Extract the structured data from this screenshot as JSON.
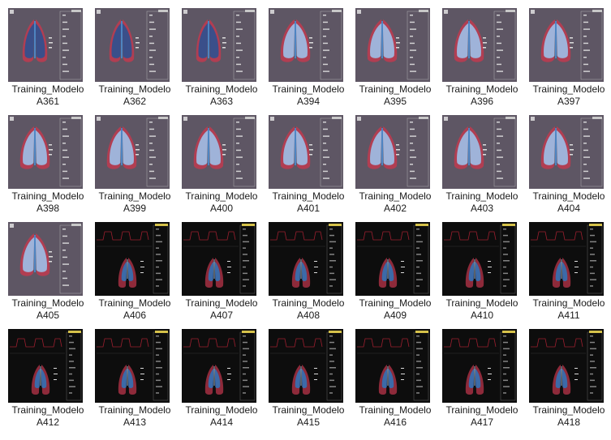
{
  "colors": {
    "background": "#ffffff",
    "label_text": "#1a1a1a",
    "light_bg": "#5a5260",
    "dark_bg": "#0d0d0d",
    "lung_red": "#c0394f",
    "lung_blue": "#4a90d9",
    "waveform_red": "#9b1f2e",
    "readout_yellow": "#d6c24a"
  },
  "files": [
    {
      "line1": "Training_Modelo",
      "line2": "A361",
      "style": "light-a",
      "icon": "lung-light-thumbnail-icon"
    },
    {
      "line1": "Training_Modelo",
      "line2": "A362",
      "style": "light-a",
      "icon": "lung-light-thumbnail-icon"
    },
    {
      "line1": "Training_Modelo",
      "line2": "A363",
      "style": "light-a",
      "icon": "lung-light-thumbnail-icon"
    },
    {
      "line1": "Training_Modelo",
      "line2": "A394",
      "style": "light-b",
      "icon": "lung-light-thumbnail-icon"
    },
    {
      "line1": "Training_Modelo",
      "line2": "A395",
      "style": "light-b",
      "icon": "lung-light-thumbnail-icon"
    },
    {
      "line1": "Training_Modelo",
      "line2": "A396",
      "style": "light-b",
      "icon": "lung-light-thumbnail-icon"
    },
    {
      "line1": "Training_Modelo",
      "line2": "A397",
      "style": "light-b",
      "icon": "lung-light-thumbnail-icon"
    },
    {
      "line1": "Training_Modelo",
      "line2": "A398",
      "style": "light-b",
      "icon": "lung-light-thumbnail-icon"
    },
    {
      "line1": "Training_Modelo",
      "line2": "A399",
      "style": "light-b",
      "icon": "lung-light-thumbnail-icon"
    },
    {
      "line1": "Training_Modelo",
      "line2": "A400",
      "style": "light-b",
      "icon": "lung-light-thumbnail-icon"
    },
    {
      "line1": "Training_Modelo",
      "line2": "A401",
      "style": "light-b",
      "icon": "lung-light-thumbnail-icon"
    },
    {
      "line1": "Training_Modelo",
      "line2": "A402",
      "style": "light-b",
      "icon": "lung-light-thumbnail-icon"
    },
    {
      "line1": "Training_Modelo",
      "line2": "A403",
      "style": "light-b",
      "icon": "lung-light-thumbnail-icon"
    },
    {
      "line1": "Training_Modelo",
      "line2": "A404",
      "style": "light-b",
      "icon": "lung-light-thumbnail-icon"
    },
    {
      "line1": "Training_Modelo",
      "line2": "A405",
      "style": "light-b",
      "icon": "lung-light-thumbnail-icon"
    },
    {
      "line1": "Training_Modelo",
      "line2": "A406",
      "style": "dark",
      "icon": "lung-dark-thumbnail-icon"
    },
    {
      "line1": "Training_Modelo",
      "line2": "A407",
      "style": "dark",
      "icon": "lung-dark-thumbnail-icon"
    },
    {
      "line1": "Training_Modelo",
      "line2": "A408",
      "style": "dark",
      "icon": "lung-dark-thumbnail-icon"
    },
    {
      "line1": "Training_Modelo",
      "line2": "A409",
      "style": "dark",
      "icon": "lung-dark-thumbnail-icon"
    },
    {
      "line1": "Training_Modelo",
      "line2": "A410",
      "style": "dark",
      "icon": "lung-dark-thumbnail-icon"
    },
    {
      "line1": "Training_Modelo",
      "line2": "A411",
      "style": "dark",
      "icon": "lung-dark-thumbnail-icon"
    },
    {
      "line1": "Training_Modelo",
      "line2": "A412",
      "style": "dark",
      "icon": "lung-dark-thumbnail-icon"
    },
    {
      "line1": "Training_Modelo",
      "line2": "A413",
      "style": "dark",
      "icon": "lung-dark-thumbnail-icon"
    },
    {
      "line1": "Training_Modelo",
      "line2": "A414",
      "style": "dark",
      "icon": "lung-dark-thumbnail-icon"
    },
    {
      "line1": "Training_Modelo",
      "line2": "A415",
      "style": "dark",
      "icon": "lung-dark-thumbnail-icon"
    },
    {
      "line1": "Training_Modelo",
      "line2": "A416",
      "style": "dark",
      "icon": "lung-dark-thumbnail-icon"
    },
    {
      "line1": "Training_Modelo",
      "line2": "A417",
      "style": "dark",
      "icon": "lung-dark-thumbnail-icon"
    },
    {
      "line1": "Training_Modelo",
      "line2": "A418",
      "style": "dark",
      "icon": "lung-dark-thumbnail-icon"
    }
  ]
}
